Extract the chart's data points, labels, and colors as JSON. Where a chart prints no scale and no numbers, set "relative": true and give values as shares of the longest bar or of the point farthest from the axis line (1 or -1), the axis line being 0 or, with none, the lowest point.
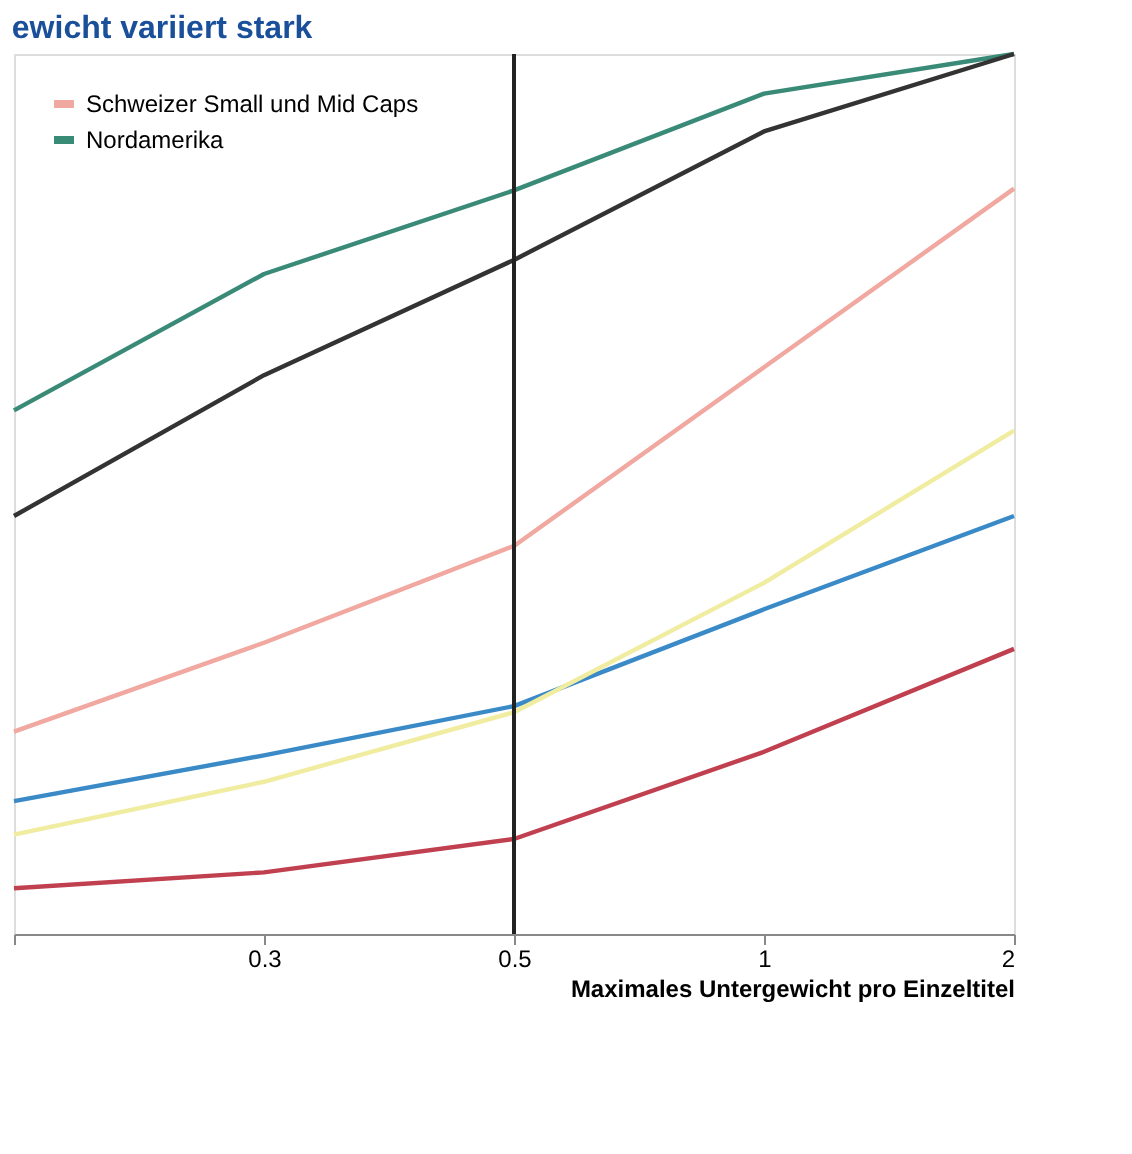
{
  "chart_data": {
    "type": "line",
    "title": "ewicht variiert stark",
    "xlabel": "Maximales Untergewicht pro Einzeltitel",
    "categories": [
      null,
      "0.3",
      "0.5",
      "1",
      "2"
    ],
    "relative": true,
    "legend": "top left",
    "grid": false,
    "ref_lines": [
      {
        "axis": "x",
        "value": "0.5",
        "color": "#222222"
      }
    ],
    "series": [
      {
        "name": "Schweizer Small und Mid Caps",
        "color": "#f0a8a0",
        "values": [
          0.23,
          0.331,
          0.441,
          0.644,
          0.847
        ]
      },
      {
        "name": "Nordamerika",
        "color": "#3a8a78",
        "values": [
          0.595,
          0.75,
          0.845,
          0.955,
          1.0
        ]
      },
      {
        "color": "#333333",
        "values": [
          0.475,
          0.635,
          0.766,
          0.912,
          1.0
        ]
      },
      {
        "color": "#3a8ac8",
        "values": [
          0.151,
          0.203,
          0.259,
          0.369,
          0.475
        ]
      },
      {
        "color": "#f0eca0",
        "values": [
          0.113,
          0.173,
          0.252,
          0.399,
          0.572
        ]
      },
      {
        "color": "#c04050",
        "values": [
          0.052,
          0.07,
          0.108,
          0.207,
          0.324
        ]
      }
    ]
  }
}
